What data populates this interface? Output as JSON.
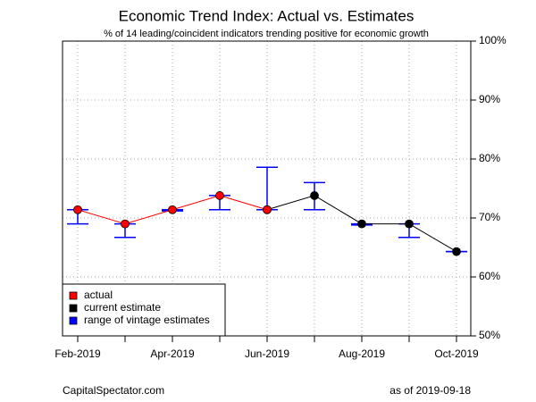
{
  "chart_data": {
    "type": "line",
    "title": "Economic Trend Index: Actual vs. Estimates",
    "subtitle": "% of 14 leading/coincident indicators trending positive for economic growth",
    "categories": [
      "Feb-2019",
      null,
      "Apr-2019",
      null,
      "Jun-2019",
      null,
      "Aug-2019",
      null,
      "Oct-2019"
    ],
    "series": [
      {
        "name": "actual",
        "color": "#ff0000",
        "values": [
          71.4,
          69.0,
          71.4,
          73.8,
          71.4,
          null,
          null,
          null,
          null
        ]
      },
      {
        "name": "current estimate",
        "color": "#000000",
        "values": [
          null,
          null,
          null,
          null,
          71.4,
          73.8,
          69.0,
          69.0,
          64.3
        ]
      },
      {
        "name": "range of vintage estimates",
        "color": "#0000ff",
        "low": [
          69.0,
          66.7,
          71.2,
          71.4,
          71.4,
          71.4,
          68.8,
          66.7,
          64.3
        ],
        "high": [
          71.4,
          69.0,
          71.4,
          73.8,
          78.6,
          76.0,
          69.0,
          69.0,
          64.3
        ]
      }
    ],
    "ylim": [
      50,
      100
    ],
    "yticks": [
      {
        "value": 50,
        "label": "50%"
      },
      {
        "value": 60,
        "label": "60%"
      },
      {
        "value": 70,
        "label": "70%"
      },
      {
        "value": 80,
        "label": "80%"
      },
      {
        "value": 90,
        "label": "90%"
      },
      {
        "value": 100,
        "label": "100%"
      }
    ],
    "grid": true,
    "legend": "bottom-left",
    "source": "CapitalSpectator.com",
    "note": "as of  2019-09-18"
  }
}
